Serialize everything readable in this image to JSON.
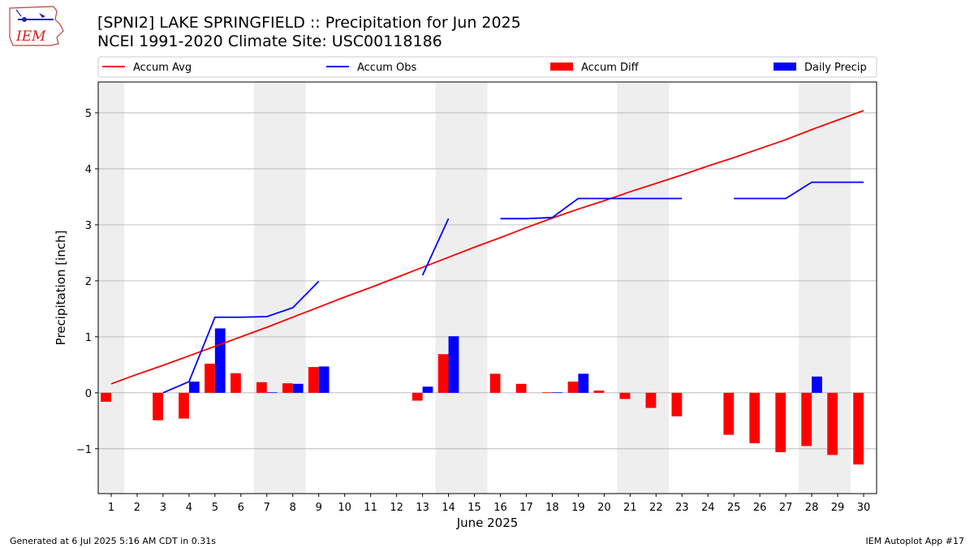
{
  "header": {
    "title_line1": "[SPNI2] LAKE SPRINGFIELD :: Precipitation for Jun 2025",
    "title_line2": "NCEI 1991-2020 Climate Site: USC00118186",
    "logo_text": "IEM"
  },
  "footer": {
    "left": "Generated at 6 Jul 2025 5:16 AM CDT in 0.31s",
    "right": "IEM Autoplot App #17"
  },
  "colors": {
    "avg": "#ff0000",
    "obs": "#0000ff",
    "diff": "#ff0000",
    "daily": "#0000ff",
    "weekend_band": "#eeeeee",
    "grid": "#b0b0b0"
  },
  "chart_data": {
    "type": "bar",
    "xlabel": "June 2025",
    "ylabel": "Precipitation [inch]",
    "ylim": [
      -1.8,
      5.55
    ],
    "yticks": [
      -1,
      0,
      1,
      2,
      3,
      4,
      5
    ],
    "ytick_labels": [
      "−1",
      "0",
      "1",
      "2",
      "3",
      "4",
      "5"
    ],
    "xlim": [
      0.5,
      30.5
    ],
    "x": [
      1,
      2,
      3,
      4,
      5,
      6,
      7,
      8,
      9,
      10,
      11,
      12,
      13,
      14,
      15,
      16,
      17,
      18,
      19,
      20,
      21,
      22,
      23,
      24,
      25,
      26,
      27,
      28,
      29,
      30
    ],
    "weekend_bands": [
      [
        0.5,
        1.5
      ],
      [
        6.5,
        8.5
      ],
      [
        13.5,
        15.5
      ],
      [
        20.5,
        22.5
      ],
      [
        27.5,
        29.5
      ]
    ],
    "grid": "horizontal",
    "legend": {
      "placement": "top",
      "entries": [
        {
          "label": "Accum Avg",
          "kind": "line",
          "color": "#ff0000"
        },
        {
          "label": "Accum Obs",
          "kind": "line",
          "color": "#0000ff"
        },
        {
          "label": "Accum Diff",
          "kind": "bar",
          "color": "#ff0000"
        },
        {
          "label": "Daily Precip",
          "kind": "bar",
          "color": "#0000ff"
        }
      ]
    },
    "series": [
      {
        "name": "Accum Avg",
        "kind": "line",
        "values": [
          0.16,
          0.33,
          0.49,
          0.66,
          0.83,
          1.0,
          1.17,
          1.35,
          1.53,
          1.71,
          1.88,
          2.06,
          2.24,
          2.42,
          2.6,
          2.77,
          2.95,
          3.12,
          3.28,
          3.43,
          3.59,
          3.74,
          3.89,
          4.05,
          4.2,
          4.36,
          4.52,
          4.7,
          4.87,
          5.04
        ]
      },
      {
        "name": "Accum Obs",
        "kind": "line",
        "values": [
          null,
          null,
          0.0,
          0.2,
          1.35,
          1.35,
          1.36,
          1.52,
          1.99,
          null,
          null,
          null,
          2.1,
          3.11,
          null,
          3.11,
          3.11,
          3.13,
          3.47,
          3.47,
          3.47,
          3.47,
          3.47,
          null,
          3.47,
          3.47,
          3.47,
          3.76,
          3.76,
          3.76
        ]
      },
      {
        "name": "Accum Diff",
        "kind": "bar",
        "values": [
          -0.16,
          null,
          -0.49,
          -0.46,
          0.52,
          0.35,
          0.19,
          0.17,
          0.46,
          null,
          null,
          null,
          -0.14,
          0.69,
          null,
          0.34,
          0.16,
          0.01,
          0.2,
          0.04,
          -0.11,
          -0.27,
          -0.42,
          null,
          -0.75,
          -0.9,
          -1.06,
          -0.95,
          -1.11,
          -1.28
        ]
      },
      {
        "name": "Daily Precip",
        "kind": "bar",
        "values": [
          0,
          null,
          0,
          0.2,
          1.15,
          0,
          0.01,
          0.16,
          0.47,
          null,
          null,
          null,
          0.11,
          1.01,
          null,
          0,
          0,
          0.01,
          0.34,
          0,
          0,
          0,
          0,
          null,
          0,
          0,
          0,
          0.29,
          0,
          0
        ]
      }
    ]
  }
}
